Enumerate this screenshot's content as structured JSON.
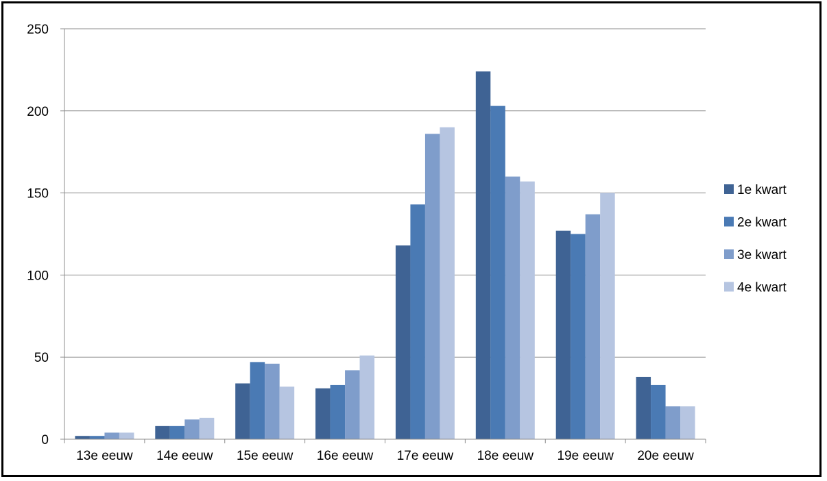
{
  "chart_data": {
    "type": "bar",
    "title": "",
    "xlabel": "",
    "ylabel": "",
    "categories": [
      "13e eeuw",
      "14e eeuw",
      "15e eeuw",
      "16e eeuw",
      "17e eeuw",
      "18e eeuw",
      "19e eeuw",
      "20e eeuw"
    ],
    "series": [
      {
        "name": "1e kwart",
        "color": "#3f6394",
        "values": [
          2,
          8,
          34,
          31,
          118,
          224,
          127,
          38
        ]
      },
      {
        "name": "2e kwart",
        "color": "#4a7ab4",
        "values": [
          2,
          8,
          47,
          33,
          143,
          203,
          125,
          33
        ]
      },
      {
        "name": "3e kwart",
        "color": "#7f9dcb",
        "values": [
          4,
          12,
          46,
          42,
          186,
          160,
          137,
          20
        ]
      },
      {
        "name": "4e kwart",
        "color": "#b6c5e1",
        "values": [
          4,
          13,
          32,
          51,
          190,
          157,
          150,
          20
        ]
      }
    ],
    "ylim": [
      0,
      250
    ],
    "yticks": [
      0,
      50,
      100,
      150,
      200,
      250
    ],
    "grid": true,
    "legend_position": "right"
  }
}
